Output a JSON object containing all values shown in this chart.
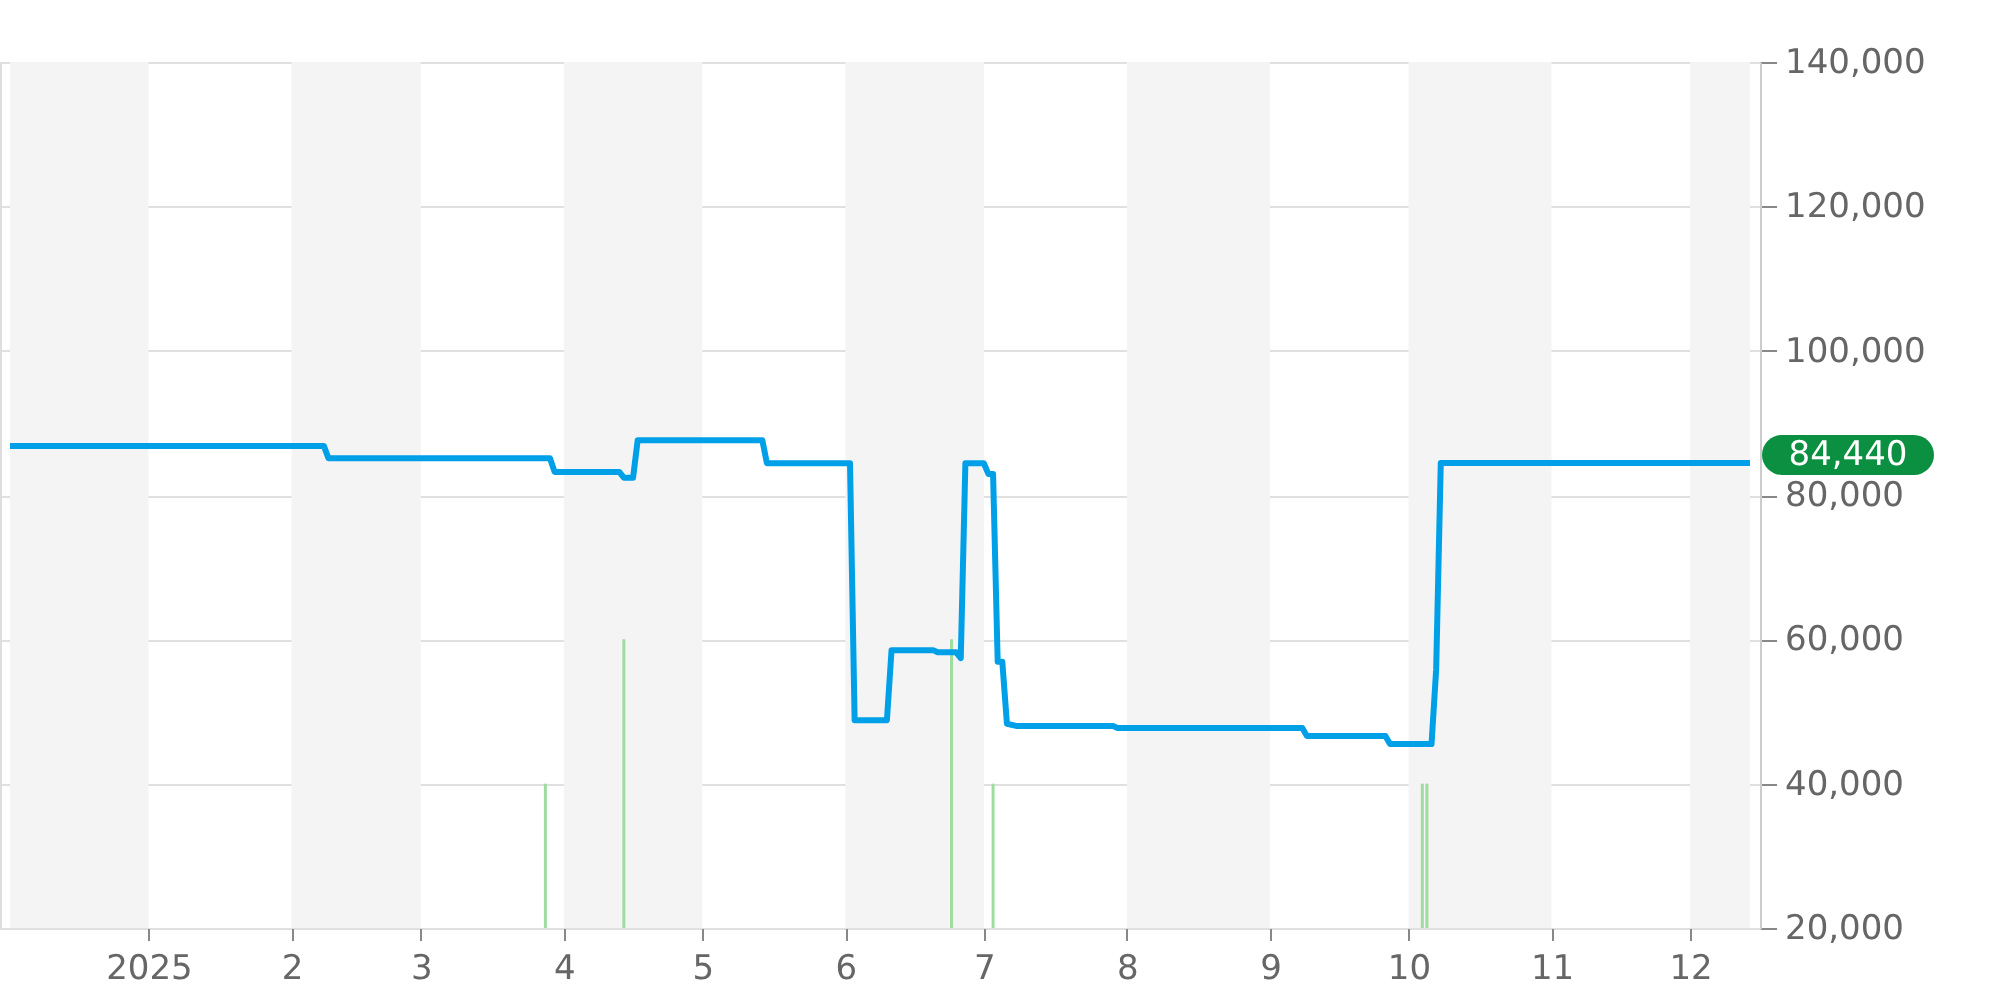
{
  "chart_data": {
    "type": "line",
    "xlim": [
      "2024-12-02",
      "2025-12-14"
    ],
    "xticks": [
      {
        "value": "2025-01-01",
        "label": "2025"
      },
      {
        "value": "2025-02-01",
        "label": "2"
      },
      {
        "value": "2025-03-01",
        "label": "3"
      },
      {
        "value": "2025-04-01",
        "label": "4"
      },
      {
        "value": "2025-05-01",
        "label": "5"
      },
      {
        "value": "2025-06-01",
        "label": "6"
      },
      {
        "value": "2025-07-01",
        "label": "7"
      },
      {
        "value": "2025-08-01",
        "label": "8"
      },
      {
        "value": "2025-09-01",
        "label": "9"
      },
      {
        "value": "2025-10-01",
        "label": "10"
      },
      {
        "value": "2025-11-01",
        "label": "11"
      },
      {
        "value": "2025-12-01",
        "label": "12"
      }
    ],
    "ylim": [
      20000,
      140000
    ],
    "yticks": [
      {
        "value": 20000,
        "label": "20,000"
      },
      {
        "value": 40000,
        "label": "40,000"
      },
      {
        "value": 60000,
        "label": "60,000"
      },
      {
        "value": 80000,
        "label": "80,000"
      },
      {
        "value": 100000,
        "label": "100,000"
      },
      {
        "value": 120000,
        "label": "120,000"
      },
      {
        "value": 140000,
        "label": "140,000"
      }
    ],
    "grid": "y",
    "marker": "none",
    "line_style": "solid",
    "bands": [
      {
        "axis": "x",
        "from": "2024-12-02",
        "to": "2025-01-01",
        "color": "#f4f4f4"
      },
      {
        "axis": "x",
        "from": "2025-02-01",
        "to": "2025-03-01",
        "color": "#f4f4f4"
      },
      {
        "axis": "x",
        "from": "2025-04-01",
        "to": "2025-05-01",
        "color": "#f4f4f4"
      },
      {
        "axis": "x",
        "from": "2025-06-01",
        "to": "2025-07-01",
        "color": "#f4f4f4"
      },
      {
        "axis": "x",
        "from": "2025-08-01",
        "to": "2025-09-01",
        "color": "#f4f4f4"
      },
      {
        "axis": "x",
        "from": "2025-10-01",
        "to": "2025-11-01",
        "color": "#f4f4f4"
      },
      {
        "axis": "x",
        "from": "2025-12-01",
        "to": "2025-12-14",
        "color": "#f4f4f4"
      }
    ],
    "series": [
      {
        "type": "bar",
        "color": "#9fdc9f",
        "x": [
          "2025-03-28",
          "2025-04-14",
          "2025-06-24",
          "2025-07-03",
          "2025-10-04",
          "2025-10-05"
        ],
        "values": [
          40000,
          60000,
          60000,
          40000,
          40000,
          40000
        ]
      },
      {
        "color": "#00a0e9",
        "x": [
          "2024-12-02",
          "2025-02-08",
          "2025-02-09",
          "2025-03-29",
          "2025-03-30",
          "2025-04-13",
          "2025-04-14",
          "2025-04-16",
          "2025-04-17",
          "2025-05-14",
          "2025-05-15",
          "2025-06-02",
          "2025-06-03",
          "2025-06-10",
          "2025-06-11",
          "2025-06-20",
          "2025-06-21",
          "2025-06-25",
          "2025-06-26",
          "2025-06-27",
          "2025-07-01",
          "2025-07-02",
          "2025-07-03",
          "2025-07-04",
          "2025-07-05",
          "2025-07-06",
          "2025-07-08",
          "2025-07-29",
          "2025-07-30",
          "2025-09-08",
          "2025-09-09",
          "2025-09-26",
          "2025-09-27",
          "2025-10-06",
          "2025-10-07",
          "2025-10-08",
          "2025-12-14"
        ],
        "values": [
          86800,
          86800,
          85100,
          85100,
          83200,
          83200,
          82400,
          82400,
          87600,
          87600,
          84400,
          84400,
          48800,
          48800,
          58500,
          58500,
          58200,
          58200,
          57400,
          84400,
          84400,
          82900,
          82900,
          56900,
          56900,
          48300,
          48000,
          48000,
          47700,
          47700,
          46600,
          46600,
          45500,
          45500,
          55800,
          84440,
          84440
        ]
      }
    ],
    "annotations": [
      {
        "text": "84,440",
        "x": "2025-12-14",
        "y": 84440
      }
    ]
  }
}
